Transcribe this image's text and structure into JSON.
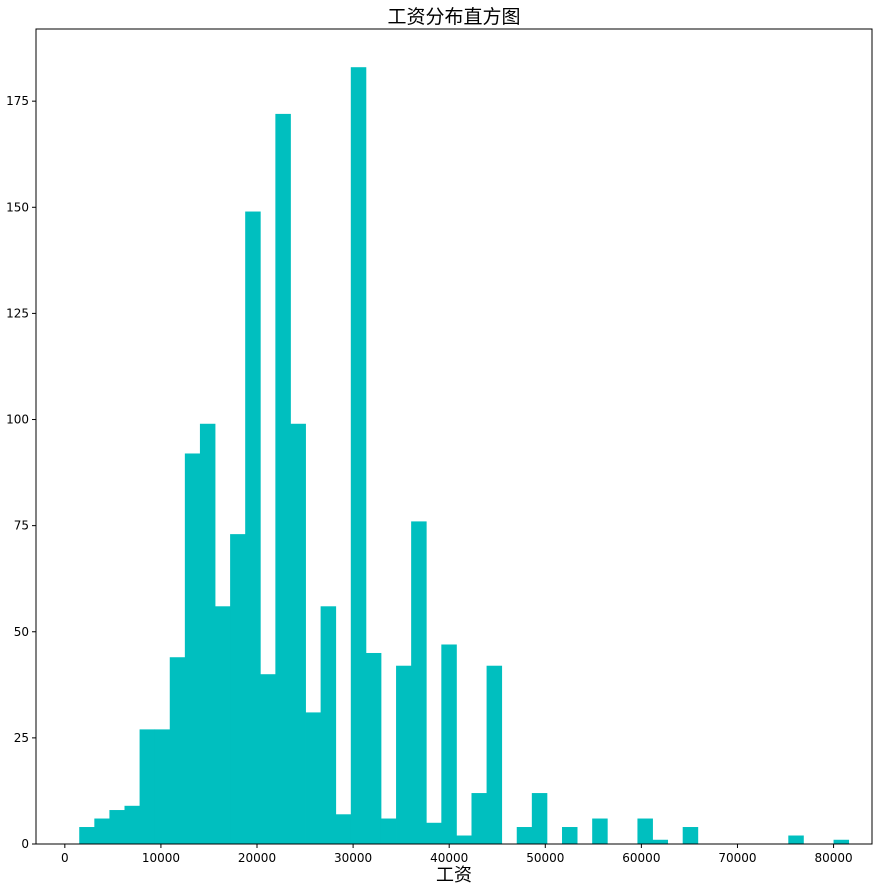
{
  "chart_data": {
    "type": "bar",
    "title": "工资分布直方图",
    "xlabel": "工资",
    "ylabel": "",
    "xlim": [
      -3000,
      84000
    ],
    "ylim": [
      0,
      192
    ],
    "grid": false,
    "bar_color": "#00bfbf",
    "xticks": [
      0,
      10000,
      20000,
      30000,
      40000,
      50000,
      60000,
      70000,
      80000
    ],
    "yticks": [
      0,
      25,
      50,
      75,
      100,
      125,
      150,
      175
    ],
    "bin_start": 1500,
    "bin_width": 1570,
    "counts": [
      4,
      6,
      8,
      9,
      27,
      27,
      44,
      92,
      99,
      56,
      73,
      149,
      40,
      172,
      99,
      31,
      56,
      7,
      183,
      45,
      6,
      42,
      76,
      5,
      47,
      2,
      12,
      42,
      0,
      4,
      12,
      0,
      4,
      0,
      6,
      0,
      0,
      6,
      1,
      0,
      4,
      0,
      0,
      0,
      0,
      0,
      0,
      2,
      0,
      0,
      1
    ]
  }
}
